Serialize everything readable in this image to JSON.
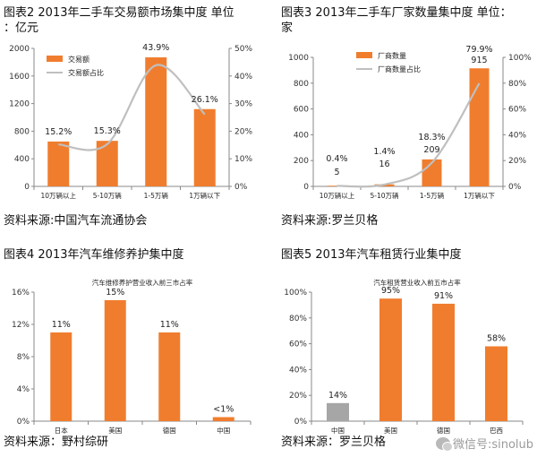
{
  "panels": [
    {
      "title_line1": "图表2 2013年二手车交易额市场集中度 单位",
      "title_line2": "：亿元",
      "source": "资料来源:中国汽车流通协会"
    },
    {
      "title_line1": "图表3 2013年二手车厂家数量集中度 单位：",
      "title_line2": "家",
      "source": "资料来源:罗兰贝格"
    },
    {
      "title_line1": "图表4 2013年汽车维修养护集中度",
      "title_line2": "",
      "source": "资料来源：野村综研"
    },
    {
      "title_line1": "图表5 2013年汽车租赁行业集中度",
      "title_line2": "",
      "source": "资料来源：罗兰贝格"
    }
  ],
  "watermark": "微信号:sinolub",
  "chart_data": [
    {
      "type": "bar",
      "categories": [
        "10万辆以上",
        "5-10万辆",
        "1-5万辆",
        "1万辆以下"
      ],
      "series": [
        {
          "name": "交易额",
          "type": "bar",
          "values": [
            650,
            660,
            1870,
            1120
          ],
          "axis": "left"
        },
        {
          "name": "交易额占比",
          "type": "line",
          "values": [
            15.2,
            15.3,
            43.9,
            26.1
          ],
          "axis": "right"
        }
      ],
      "data_labels": [
        "15.2%",
        "15.3%",
        "43.9%",
        "26.1%"
      ],
      "ylim": [
        0,
        2000
      ],
      "yticks": [
        "0",
        "400",
        "800",
        "1200",
        "1600",
        "2000"
      ],
      "y2lim": [
        0,
        50
      ],
      "y2ticks": [
        "0%",
        "10%",
        "20%",
        "30%",
        "40%",
        "50%"
      ],
      "legend": "top-left",
      "colors": {
        "bar": "#F07D2E",
        "line": "#BFBFBF"
      }
    },
    {
      "type": "bar",
      "categories": [
        "10万辆以上",
        "5-10万辆",
        "1-5万辆",
        "1万辆以下"
      ],
      "series": [
        {
          "name": "厂商数量",
          "type": "bar",
          "values": [
            5,
            16,
            209,
            915
          ],
          "axis": "left"
        },
        {
          "name": "厂商数量占比",
          "type": "line",
          "values": [
            0.4,
            1.4,
            18.3,
            79.9
          ],
          "axis": "right"
        }
      ],
      "bar_labels": [
        "5",
        "16",
        "209",
        "915"
      ],
      "data_labels": [
        "0.4%",
        "1.4%",
        "18.3%",
        "79.9%"
      ],
      "ylim": [
        0,
        1000
      ],
      "yticks": [
        "0",
        "200",
        "400",
        "600",
        "800",
        "1000"
      ],
      "y2lim": [
        0,
        100
      ],
      "y2ticks": [
        "0%",
        "20%",
        "40%",
        "60%",
        "80%",
        "100%"
      ],
      "legend": "top-left",
      "colors": {
        "bar": "#F07D2E",
        "line": "#BFBFBF"
      }
    },
    {
      "type": "bar",
      "title": "汽车维修养护营业收入前三市占率",
      "categories": [
        "日本",
        "美国",
        "德国",
        "中国"
      ],
      "values": [
        11,
        15,
        11,
        0.5
      ],
      "data_labels": [
        "11%",
        "15%",
        "11%",
        "<1%"
      ],
      "ylim": [
        0,
        16
      ],
      "yticks": [
        "0%",
        "4%",
        "8%",
        "12%",
        "16%"
      ],
      "colors": {
        "bar": "#F07D2E"
      }
    },
    {
      "type": "bar",
      "title": "汽车租赁营业收入前五市占率",
      "categories": [
        "中国",
        "美国",
        "德国",
        "巴西"
      ],
      "values": [
        14,
        95,
        91,
        58
      ],
      "data_labels": [
        "14%",
        "95%",
        "91%",
        "58%"
      ],
      "bar_colors": [
        "#A6A6A6",
        "#F07D2E",
        "#F07D2E",
        "#F07D2E"
      ],
      "ylim": [
        0,
        100
      ],
      "yticks": [
        "0%",
        "20%",
        "40%",
        "60%",
        "80%",
        "100%"
      ]
    }
  ]
}
